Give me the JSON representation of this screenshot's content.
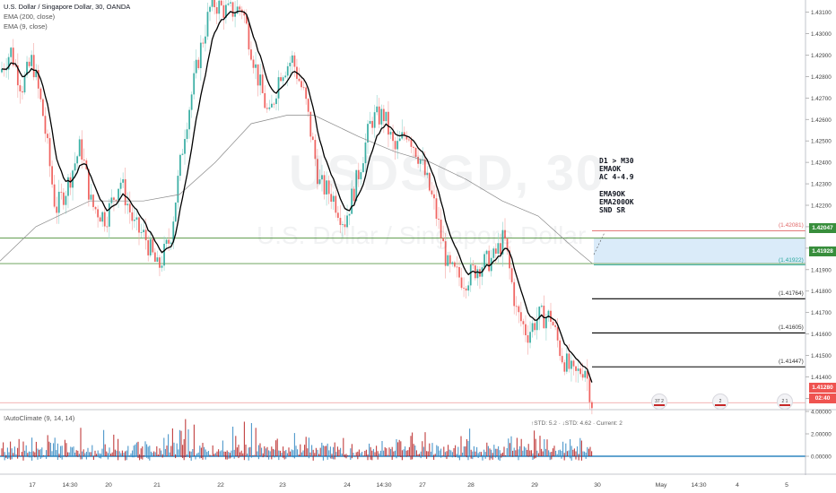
{
  "legend": {
    "symbol_line": "U.S. Dollar / Singapore Dollar, 30, OANDA",
    "ema200": "EMA (200, close)",
    "ema9": "EMA (9, close)"
  },
  "watermark": {
    "symbol": "USDSGD, 30",
    "name": "U.S. Dollar / Singapore Dollar"
  },
  "annotation": {
    "block1": [
      "D1 > M30",
      "EMAOK",
      "AC 4-4.9"
    ],
    "block2": [
      "EMA9OK",
      "EMA200OK",
      "SND SR"
    ]
  },
  "price_axis": {
    "ticks": [
      "1.43100",
      "1.43000",
      "1.42900",
      "1.42800",
      "1.42700",
      "1.42600",
      "1.42500",
      "1.42400",
      "1.42300",
      "1.42200",
      "1.42100",
      "1.42000",
      "1.41900",
      "1.41800",
      "1.41700",
      "1.41600",
      "1.41500",
      "1.41400",
      "1.41300"
    ],
    "min": 1.4126,
    "max": 1.4314
  },
  "levels": [
    {
      "label": "(1.42081)",
      "price": 1.42081,
      "color": "#e06666",
      "style": "red"
    },
    {
      "label": "(1.41922)",
      "price": 1.41922,
      "color": "#26a69a",
      "style": "teal"
    },
    {
      "label": "(1.41764)",
      "price": 1.41764,
      "color": "#000000",
      "style": "black"
    },
    {
      "label": "(1.41605)",
      "price": 1.41605,
      "color": "#000000",
      "style": "black"
    },
    {
      "label": "(1.41447)",
      "price": 1.41447,
      "color": "#000000",
      "style": "black"
    }
  ],
  "tags": {
    "upper": {
      "text": "1.42047",
      "color": "#388e3c"
    },
    "lower": {
      "text": "1.41928",
      "color": "#388e3c"
    },
    "current": {
      "text": "1.41280",
      "color": "#ef5350"
    },
    "countdown": {
      "text": "02:40",
      "color": "#ef5350"
    }
  },
  "indicator": {
    "title": "!AutoClimate (9, 14, 14)",
    "stats": "↑STD: 5.2 · ↓STD: 4.62 · Current: 2",
    "ticks": [
      "4.00000",
      "2.00000",
      "0.00000"
    ]
  },
  "time_axis": [
    "17",
    "14:30",
    "20",
    "21",
    "22",
    "23",
    "24",
    "14:30",
    "27",
    "28",
    "29",
    "30",
    "May",
    "14:30",
    "4",
    "5"
  ],
  "events": [
    {
      "label": "37 2"
    },
    {
      "label": "2"
    },
    {
      "label": "2 1"
    }
  ],
  "chart_data": {
    "type": "candlestick",
    "title": "U.S. Dollar / Singapore Dollar, 30, OANDA",
    "timeframe": "30",
    "source": "OANDA",
    "ylim": [
      1.4126,
      1.4314
    ],
    "path": [
      [
        0,
        1.4282
      ],
      [
        12,
        1.4292
      ],
      [
        24,
        1.4275
      ],
      [
        36,
        1.4288
      ],
      [
        48,
        1.4262
      ],
      [
        62,
        1.4218
      ],
      [
        74,
        1.4228
      ],
      [
        90,
        1.4248
      ],
      [
        102,
        1.422
      ],
      [
        118,
        1.4214
      ],
      [
        134,
        1.4232
      ],
      [
        150,
        1.421
      ],
      [
        162,
        1.4205
      ],
      [
        176,
        1.419
      ],
      [
        190,
        1.4205
      ],
      [
        206,
        1.4255
      ],
      [
        222,
        1.429
      ],
      [
        236,
        1.4315
      ],
      [
        254,
        1.431
      ],
      [
        270,
        1.4312
      ],
      [
        286,
        1.4282
      ],
      [
        300,
        1.426
      ],
      [
        312,
        1.4282
      ],
      [
        326,
        1.4288
      ],
      [
        340,
        1.427
      ],
      [
        356,
        1.423
      ],
      [
        370,
        1.4225
      ],
      [
        384,
        1.4212
      ],
      [
        398,
        1.4232
      ],
      [
        414,
        1.426
      ],
      [
        428,
        1.4262
      ],
      [
        440,
        1.4245
      ],
      [
        454,
        1.4255
      ],
      [
        468,
        1.4242
      ],
      [
        484,
        1.422
      ],
      [
        500,
        1.419
      ],
      [
        518,
        1.4185
      ],
      [
        534,
        1.4192
      ],
      [
        550,
        1.4195
      ],
      [
        562,
        1.4205
      ],
      [
        576,
        1.417
      ],
      [
        588,
        1.416
      ],
      [
        600,
        1.4168
      ],
      [
        614,
        1.4168
      ],
      [
        626,
        1.415
      ],
      [
        640,
        1.414
      ],
      [
        652,
        1.4145
      ],
      [
        660,
        1.4128
      ]
    ],
    "ema200": [
      [
        0,
        1.4194
      ],
      [
        40,
        1.421
      ],
      [
        100,
        1.4222
      ],
      [
        160,
        1.4222
      ],
      [
        200,
        1.4225
      ],
      [
        240,
        1.424
      ],
      [
        280,
        1.4258
      ],
      [
        320,
        1.4262
      ],
      [
        350,
        1.4262
      ],
      [
        400,
        1.4252
      ],
      [
        440,
        1.4245
      ],
      [
        480,
        1.424
      ],
      [
        520,
        1.4232
      ],
      [
        560,
        1.4222
      ],
      [
        600,
        1.4215
      ],
      [
        640,
        1.42
      ],
      [
        660,
        1.4193
      ]
    ]
  }
}
